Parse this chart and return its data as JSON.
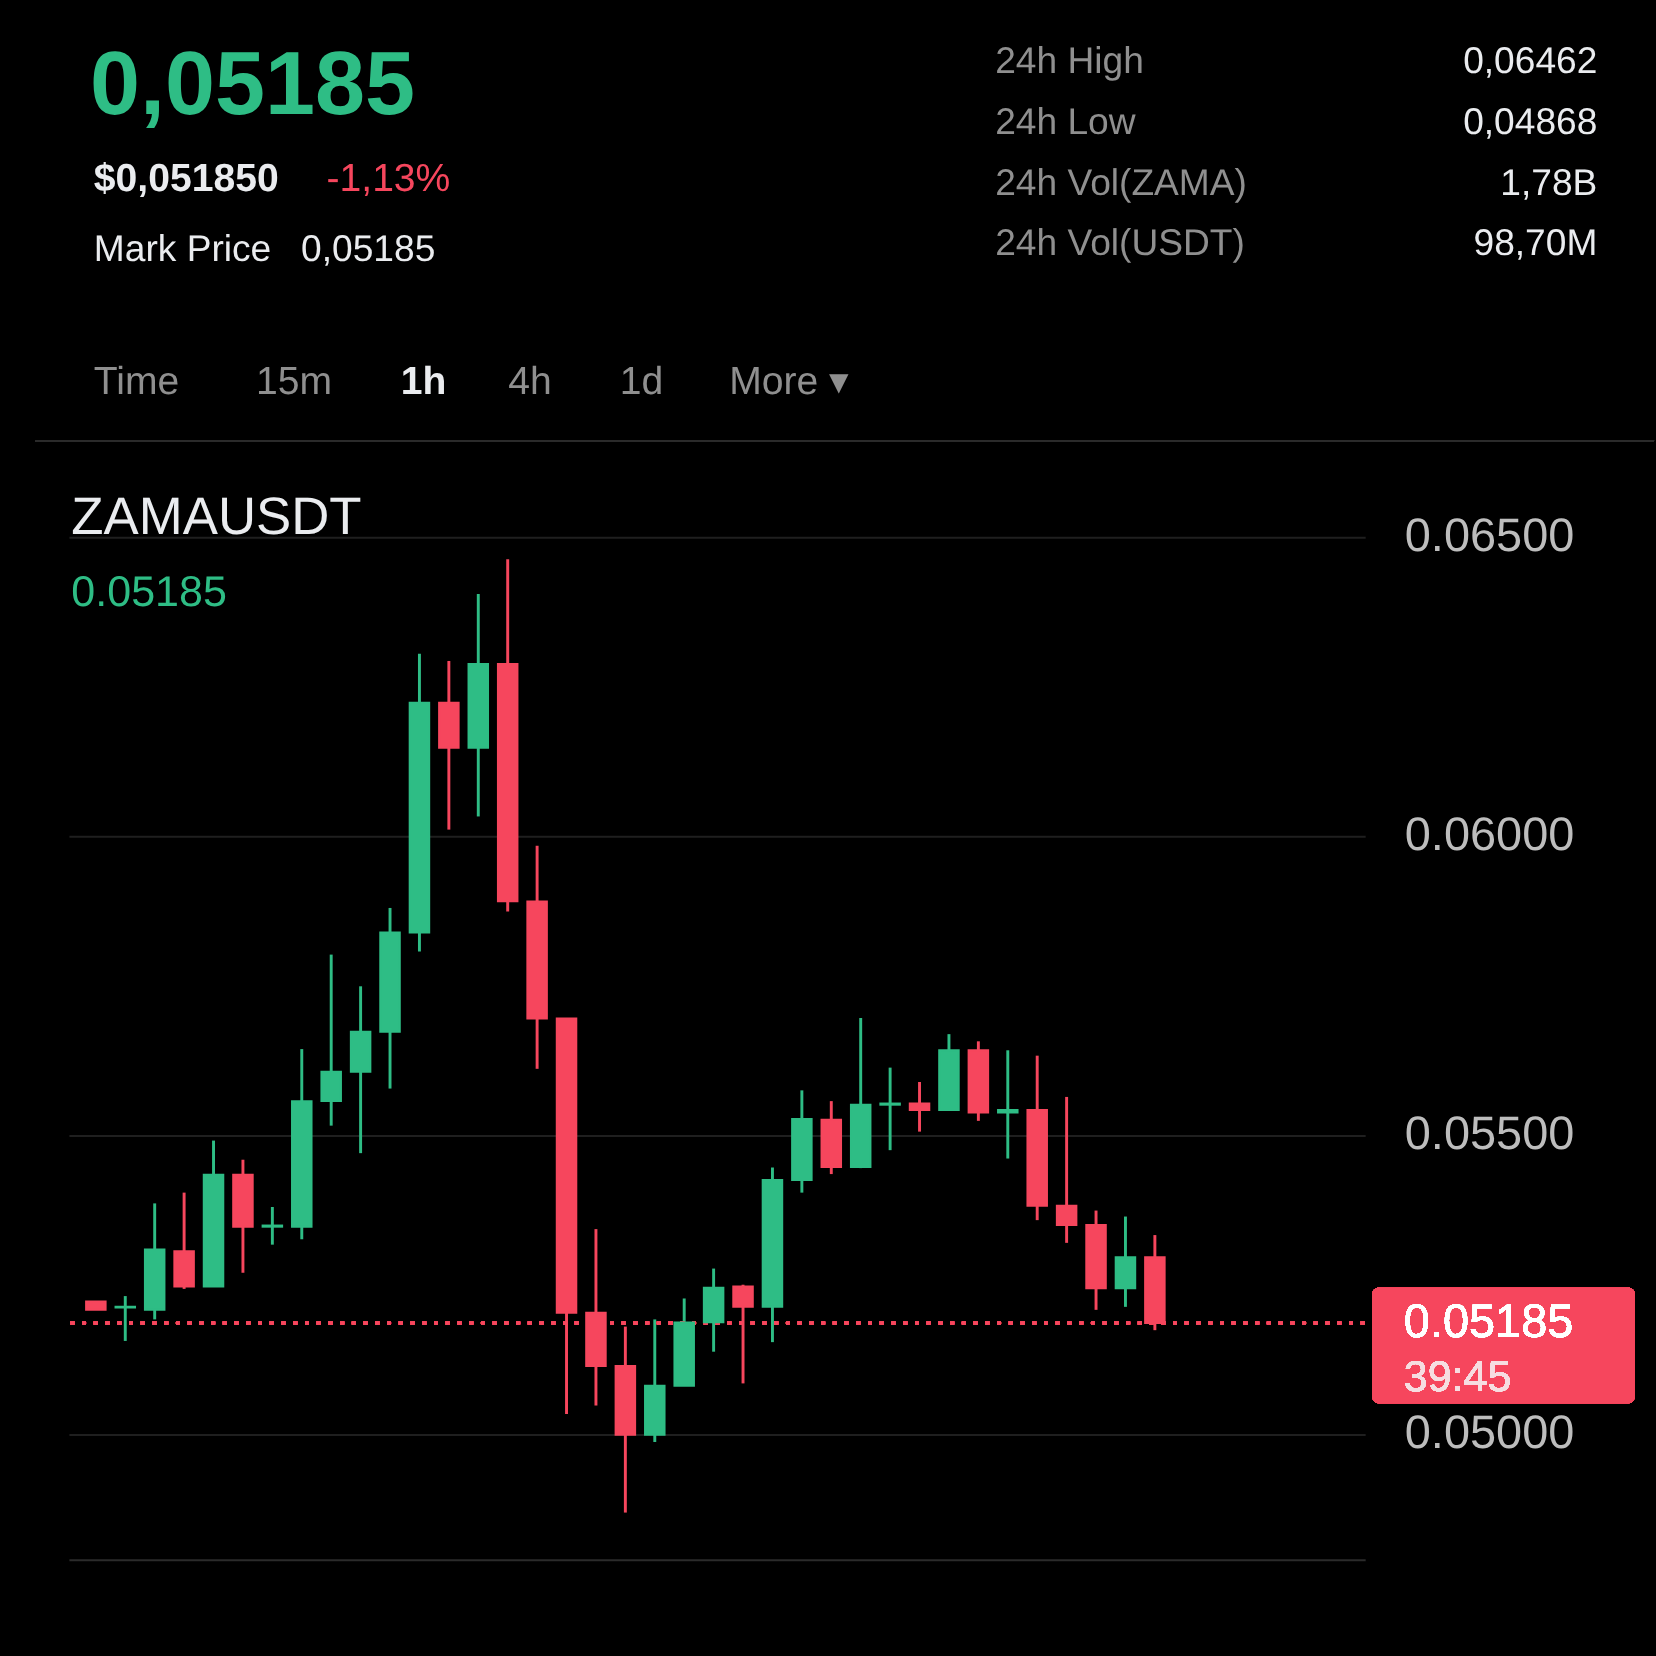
{
  "chart_data": [
    {
      "type": "other",
      "annotations": [
        "0,05185",
        "$0,051850",
        "-1,13%",
        "Mark Price",
        "0,05185",
        "24h High",
        "0,06462",
        "24h Low",
        "0,04868",
        "24h Vol(ZAMA)",
        "1,78B",
        "24h Vol(USDT)",
        "98,70M",
        "Time",
        "15m",
        "1h",
        "4h",
        "1d",
        "More ▾"
      ]
    },
    {
      "type": "candlestick",
      "title": "ZAMAUSDT",
      "subtitle": "0.05185",
      "categories": [
        null,
        null,
        null,
        null,
        null,
        null,
        null,
        null,
        null,
        null,
        null,
        null,
        null,
        null,
        null,
        null,
        null,
        null,
        null,
        null,
        null,
        null,
        null,
        null,
        null,
        null,
        null,
        null,
        null,
        null,
        null,
        null,
        null,
        null,
        null,
        null,
        null
      ],
      "ohlc": [
        [
          0.05221,
          0.05221,
          0.05207,
          0.05207
        ],
        [
          0.05211,
          0.0523,
          0.05155,
          0.05212
        ],
        [
          0.05207,
          0.05385,
          0.05191,
          0.05308
        ],
        [
          0.05305,
          0.05403,
          0.05242,
          0.05246
        ],
        [
          0.05246,
          0.0549,
          0.05246,
          0.05433
        ],
        [
          0.05433,
          0.05458,
          0.05269,
          0.05346
        ],
        [
          0.05346,
          0.05379,
          0.05316,
          0.05348
        ],
        [
          0.05346,
          0.05643,
          0.05325,
          0.05556
        ],
        [
          0.05556,
          0.05801,
          0.05515,
          0.05605
        ],
        [
          0.05605,
          0.05748,
          0.05469,
          0.05672
        ],
        [
          0.05672,
          0.05879,
          0.05577,
          0.05838
        ],
        [
          0.05838,
          0.06304,
          0.05806,
          0.06222
        ],
        [
          0.06222,
          0.06292,
          0.0601,
          0.06147
        ],
        [
          0.06147,
          0.06404,
          0.06032,
          0.06287
        ],
        [
          0.06287,
          0.06462,
          0.05873,
          0.0589
        ],
        [
          0.0589,
          0.05983,
          0.0561,
          0.05694
        ],
        [
          0.05694,
          0.05694,
          0.05033,
          0.05202
        ],
        [
          0.05202,
          0.05342,
          0.05047,
          0.05113
        ],
        [
          0.05113,
          0.05179,
          0.04868,
          0.04998
        ],
        [
          0.04998,
          0.05191,
          0.04986,
          0.0508
        ],
        [
          0.0508,
          0.05226,
          0.0508,
          0.05186
        ],
        [
          0.05186,
          0.05276,
          0.05137,
          0.05244
        ],
        [
          0.05246,
          0.05249,
          0.05084,
          0.05212
        ],
        [
          0.05212,
          0.05445,
          0.05153,
          0.05424
        ],
        [
          0.05424,
          0.05574,
          0.05403,
          0.05526
        ],
        [
          0.05525,
          0.05556,
          0.05434,
          0.05446
        ],
        [
          0.05446,
          0.05695,
          0.05444,
          0.0555
        ],
        [
          0.0555,
          0.05612,
          0.05474,
          0.05552
        ],
        [
          0.05552,
          0.05588,
          0.05505,
          0.05541
        ],
        [
          0.05541,
          0.05668,
          0.05541,
          0.05641
        ],
        [
          0.05641,
          0.05656,
          0.05523,
          0.05537
        ],
        [
          0.05537,
          0.05641,
          0.0546,
          0.05541
        ],
        [
          0.05541,
          0.05632,
          0.05357,
          0.05381
        ],
        [
          0.05381,
          0.05563,
          0.05319,
          0.05349
        ],
        [
          0.05349,
          0.05373,
          0.05207,
          0.05243
        ],
        [
          0.05243,
          0.05363,
          0.05212,
          0.05295
        ],
        [
          0.05295,
          0.05332,
          0.05173,
          0.05185
        ]
      ],
      "colors": [
        "#f6465d",
        "#2ebd85",
        "#2ebd85",
        "#f6465d",
        "#2ebd85",
        "#f6465d",
        "#2ebd85",
        "#2ebd85",
        "#2ebd85",
        "#2ebd85",
        "#2ebd85",
        "#2ebd85",
        "#f6465d",
        "#2ebd85",
        "#f6465d",
        "#f6465d",
        "#f6465d",
        "#f6465d",
        "#f6465d",
        "#2ebd85",
        "#2ebd85",
        "#2ebd85",
        "#f6465d",
        "#2ebd85",
        "#2ebd85",
        "#f6465d",
        "#2ebd85",
        "#2ebd85",
        "#f6465d",
        "#2ebd85",
        "#f6465d",
        "#2ebd85",
        "#f6465d",
        "#f6465d",
        "#f6465d",
        "#2ebd85",
        "#f6465d"
      ],
      "ylim": [
        0.0479,
        0.0666
      ],
      "yticks": [
        {
          "value": 0.05,
          "label": "0.05000"
        },
        {
          "value": 0.055,
          "label": "0.05500"
        },
        {
          "value": 0.06,
          "label": "0.06000"
        },
        {
          "value": 0.065,
          "label": "0.06500"
        }
      ],
      "grid": "y",
      "tick_labels": "y",
      "ref_lines": [
        {
          "axis": "y",
          "value": 0.05185,
          "label": "0.05185",
          "color": "#f6465d",
          "line_style": "dotted"
        }
      ],
      "annotations": [
        "39:45"
      ]
    }
  ]
}
